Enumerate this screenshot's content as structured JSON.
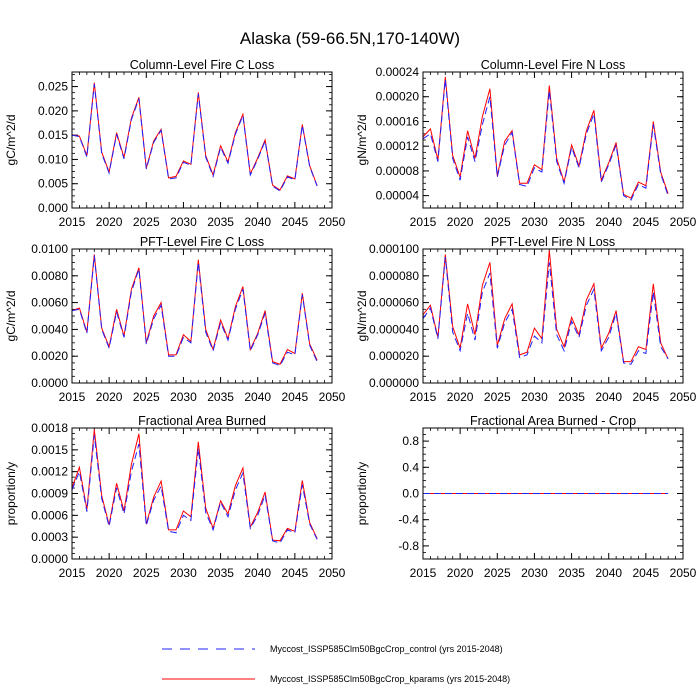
{
  "figure": {
    "title": "Alaska (59-66.5N,170-140W)",
    "legend": [
      {
        "label": "Myccost_ISSP585Clm50BgcCrop_control (yrs 2015-2048)",
        "color": "#2020ff",
        "style": "dashed"
      },
      {
        "label": "Myccost_ISSP585Clm50BgcCrop_kparams (yrs 2015-2048)",
        "color": "#ff0000",
        "style": "solid"
      }
    ]
  },
  "chart_data": [
    {
      "type": "line",
      "title": "Column-Level Fire C Loss",
      "ylabel": "gC/m^2/d",
      "xlim": [
        2015,
        2050
      ],
      "ylim": [
        0,
        0.028
      ],
      "xticks": [
        "2015",
        "2020",
        "2025",
        "2030",
        "2035",
        "2040",
        "2045",
        "2050"
      ],
      "yticks": [
        "0.000",
        "0.005",
        "0.010",
        "0.015",
        "0.020",
        "0.025"
      ],
      "x": [
        2015,
        2016,
        2017,
        2018,
        2019,
        2020,
        2021,
        2022,
        2023,
        2024,
        2025,
        2026,
        2027,
        2028,
        2029,
        2030,
        2031,
        2032,
        2033,
        2034,
        2035,
        2036,
        2037,
        2038,
        2039,
        2040,
        2041,
        2042,
        2043,
        2044,
        2045,
        2046,
        2047,
        2048
      ],
      "series": [
        {
          "name": "control",
          "values": [
            0.015,
            0.0147,
            0.0105,
            0.0255,
            0.0112,
            0.0072,
            0.0152,
            0.0101,
            0.0182,
            0.0225,
            0.008,
            0.0135,
            0.016,
            0.006,
            0.0062,
            0.0094,
            0.0088,
            0.0235,
            0.0105,
            0.0065,
            0.0125,
            0.0092,
            0.0152,
            0.019,
            0.0068,
            0.01,
            0.0138,
            0.0045,
            0.0035,
            0.0064,
            0.0058,
            0.017,
            0.0085,
            0.0045
          ]
        },
        {
          "name": "kparams",
          "values": [
            0.015,
            0.0148,
            0.0108,
            0.0258,
            0.0115,
            0.0074,
            0.0155,
            0.0104,
            0.0185,
            0.0228,
            0.0082,
            0.0138,
            0.0162,
            0.0062,
            0.0065,
            0.0097,
            0.009,
            0.0238,
            0.0108,
            0.0068,
            0.0128,
            0.0095,
            0.0155,
            0.0193,
            0.007,
            0.0103,
            0.014,
            0.0047,
            0.0037,
            0.0066,
            0.006,
            0.0172,
            0.0087,
            0.0046
          ]
        }
      ]
    },
    {
      "type": "line",
      "title": "Column-Level Fire N Loss",
      "ylabel": "gN/m^2/d",
      "xlim": [
        2015,
        2050
      ],
      "ylim": [
        2e-05,
        0.00024
      ],
      "xticks": [
        "2015",
        "2020",
        "2025",
        "2030",
        "2035",
        "2040",
        "2045",
        "2050"
      ],
      "yticks": [
        "0.00004",
        "0.00008",
        "0.00012",
        "0.00016",
        "0.00020",
        "0.00024"
      ],
      "x": [
        2015,
        2016,
        2017,
        2018,
        2019,
        2020,
        2021,
        2022,
        2023,
        2024,
        2025,
        2026,
        2027,
        2028,
        2029,
        2030,
        2031,
        2032,
        2033,
        2034,
        2035,
        2036,
        2037,
        2038,
        2039,
        2040,
        2041,
        2042,
        2043,
        2044,
        2045,
        2046,
        2047,
        2048
      ],
      "series": [
        {
          "name": "control",
          "values": [
            0.000132,
            0.00014,
            9.5e-05,
            0.000228,
            0.0001,
            6.5e-05,
            0.000135,
            9.5e-05,
            0.000155,
            0.0002,
            7e-05,
            0.000122,
            0.000142,
            5.8e-05,
            5.5e-05,
            8.5e-05,
            7.8e-05,
            0.00021,
            9.5e-05,
            6e-05,
            0.000118,
            8.5e-05,
            0.00014,
            0.000172,
            6.2e-05,
            9e-05,
            0.000122,
            4e-05,
            3.3e-05,
            5.8e-05,
            5.2e-05,
            0.000155,
            7.5e-05,
            4e-05
          ]
        },
        {
          "name": "kparams",
          "values": [
            0.000135,
            0.000148,
            9.8e-05,
            0.000232,
            0.000105,
            7e-05,
            0.000145,
            0.0001,
            0.000168,
            0.000213,
            7.2e-05,
            0.000128,
            0.000145,
            6e-05,
            6e-05,
            9e-05,
            8.2e-05,
            0.000218,
            0.0001,
            6.2e-05,
            0.000122,
            8.8e-05,
            0.000145,
            0.000178,
            6.5e-05,
            9.3e-05,
            0.000126,
            4.2e-05,
            3.6e-05,
            6.2e-05,
            5.6e-05,
            0.00016,
            7.8e-05,
            4.3e-05
          ]
        }
      ]
    },
    {
      "type": "line",
      "title": "PFT-Level Fire C Loss",
      "ylabel": "gC/m^2/d",
      "xlim": [
        2015,
        2050
      ],
      "ylim": [
        0,
        0.01
      ],
      "xticks": [
        "2015",
        "2020",
        "2025",
        "2030",
        "2035",
        "2040",
        "2045",
        "2050"
      ],
      "yticks": [
        "0.0000",
        "0.0020",
        "0.0040",
        "0.0060",
        "0.0080",
        "0.0100"
      ],
      "x": [
        2015,
        2016,
        2017,
        2018,
        2019,
        2020,
        2021,
        2022,
        2023,
        2024,
        2025,
        2026,
        2027,
        2028,
        2029,
        2030,
        2031,
        2032,
        2033,
        2034,
        2035,
        2036,
        2037,
        2038,
        2039,
        2040,
        2041,
        2042,
        2043,
        2044,
        2045,
        2046,
        2047,
        2048
      ],
      "series": [
        {
          "name": "control",
          "values": [
            0.0054,
            0.0055,
            0.0037,
            0.0095,
            0.004,
            0.0026,
            0.0053,
            0.0034,
            0.0068,
            0.0085,
            0.0029,
            0.0048,
            0.0058,
            0.002,
            0.002,
            0.0034,
            0.003,
            0.009,
            0.0038,
            0.0024,
            0.0045,
            0.0032,
            0.0055,
            0.007,
            0.0024,
            0.0036,
            0.0052,
            0.0015,
            0.0013,
            0.0023,
            0.0021,
            0.0066,
            0.0028,
            0.0016
          ]
        },
        {
          "name": "kparams",
          "values": [
            0.0054,
            0.0056,
            0.0038,
            0.0096,
            0.0041,
            0.0027,
            0.0055,
            0.0035,
            0.007,
            0.0086,
            0.003,
            0.005,
            0.006,
            0.0021,
            0.0021,
            0.0036,
            0.0031,
            0.0092,
            0.004,
            0.0025,
            0.0047,
            0.0033,
            0.0057,
            0.0072,
            0.0025,
            0.0037,
            0.0054,
            0.0016,
            0.0014,
            0.0025,
            0.0022,
            0.0067,
            0.0029,
            0.0017
          ]
        }
      ]
    },
    {
      "type": "line",
      "title": "PFT-Level Fire N Loss",
      "ylabel": "gN/m^2/d",
      "xlim": [
        2015,
        2050
      ],
      "ylim": [
        0,
        0.0001
      ],
      "xticks": [
        "2015",
        "2020",
        "2025",
        "2030",
        "2035",
        "2040",
        "2045",
        "2050"
      ],
      "yticks": [
        "0.000000",
        "0.000020",
        "0.000040",
        "0.000060",
        "0.000080",
        "0.000100"
      ],
      "x": [
        2015,
        2016,
        2017,
        2018,
        2019,
        2020,
        2021,
        2022,
        2023,
        2024,
        2025,
        2026,
        2027,
        2028,
        2029,
        2030,
        2031,
        2032,
        2033,
        2034,
        2035,
        2036,
        2037,
        2038,
        2039,
        2040,
        2041,
        2042,
        2043,
        2044,
        2045,
        2046,
        2047,
        2048
      ],
      "series": [
        {
          "name": "control",
          "values": [
            4.8e-05,
            5.6e-05,
            3.3e-05,
            9.4e-05,
            3.8e-05,
            2.4e-05,
            5.2e-05,
            3.2e-05,
            6.8e-05,
            8.2e-05,
            2.6e-05,
            4.5e-05,
            5.5e-05,
            1.9e-05,
            2.1e-05,
            3.5e-05,
            3e-05,
            9e-05,
            3.6e-05,
            2.4e-05,
            4.6e-05,
            3.4e-05,
            5.8e-05,
            7e-05,
            2.4e-05,
            3.4e-05,
            5.2e-05,
            1.5e-05,
            1.4e-05,
            2.4e-05,
            2.2e-05,
            6.8e-05,
            2.7e-05,
            1.8e-05
          ]
        },
        {
          "name": "kparams",
          "values": [
            5.1e-05,
            5.8e-05,
            3.4e-05,
            9.6e-05,
            4.2e-05,
            2.6e-05,
            5.9e-05,
            3.6e-05,
            7.3e-05,
            9e-05,
            2.8e-05,
            4.8e-05,
            5.9e-05,
            2.1e-05,
            2.3e-05,
            4.1e-05,
            3.3e-05,
            9.9e-05,
            4e-05,
            2.7e-05,
            4.9e-05,
            3.6e-05,
            6.2e-05,
            7.4e-05,
            2.6e-05,
            3.7e-05,
            5.4e-05,
            1.6e-05,
            1.6e-05,
            2.7e-05,
            2.5e-05,
            7.4e-05,
            3e-05,
            1.8e-05
          ]
        }
      ]
    },
    {
      "type": "line",
      "title": "Fractional Area Burned",
      "ylabel": "proportion/y",
      "xlim": [
        2015,
        2050
      ],
      "ylim": [
        0,
        0.0018
      ],
      "xticks": [
        "2015",
        "2020",
        "2025",
        "2030",
        "2035",
        "2040",
        "2045",
        "2050"
      ],
      "yticks": [
        "0.0000",
        "0.0003",
        "0.0006",
        "0.0009",
        "0.0012",
        "0.0015",
        "0.0018"
      ],
      "x": [
        2015,
        2016,
        2017,
        2018,
        2019,
        2020,
        2021,
        2022,
        2023,
        2024,
        2025,
        2026,
        2027,
        2028,
        2029,
        2030,
        2031,
        2032,
        2033,
        2034,
        2035,
        2036,
        2037,
        2038,
        2039,
        2040,
        2041,
        2042,
        2043,
        2044,
        2045,
        2046,
        2047,
        2048
      ],
      "series": [
        {
          "name": "control",
          "values": [
            0.00095,
            0.0012,
            0.00065,
            0.0017,
            0.00083,
            0.00045,
            0.00098,
            0.00062,
            0.0012,
            0.00158,
            0.00046,
            0.00081,
            0.001,
            0.00038,
            0.00036,
            0.0006,
            0.00053,
            0.00152,
            0.00064,
            0.0004,
            0.00078,
            0.00058,
            0.00095,
            0.00118,
            0.00042,
            0.0006,
            0.00088,
            0.00025,
            0.00022,
            0.0004,
            0.00036,
            0.00102,
            0.00048,
            0.00027
          ]
        },
        {
          "name": "kparams",
          "values": [
            0.00098,
            0.00126,
            0.00068,
            0.00178,
            0.00087,
            0.00047,
            0.00104,
            0.00066,
            0.0013,
            0.00172,
            0.00048,
            0.00085,
            0.00107,
            0.0004,
            0.0004,
            0.00066,
            0.00058,
            0.00161,
            0.0007,
            0.00042,
            0.0008,
            0.00062,
            0.00101,
            0.00125,
            0.00044,
            0.00064,
            0.00092,
            0.00026,
            0.00025,
            0.00042,
            0.00038,
            0.00108,
            0.0005,
            0.00028
          ]
        }
      ]
    },
    {
      "type": "line",
      "title": "Fractional Area Burned - Crop",
      "ylabel": "proportion/y",
      "xlim": [
        2015,
        2050
      ],
      "ylim": [
        -1,
        1
      ],
      "xticks": [
        "2015",
        "2020",
        "2025",
        "2030",
        "2035",
        "2040",
        "2045",
        "2050"
      ],
      "yticks": [
        "-0.8",
        "-0.4",
        "0.0",
        "0.4",
        "0.8"
      ],
      "x": [
        2015,
        2016,
        2017,
        2018,
        2019,
        2020,
        2021,
        2022,
        2023,
        2024,
        2025,
        2026,
        2027,
        2028,
        2029,
        2030,
        2031,
        2032,
        2033,
        2034,
        2035,
        2036,
        2037,
        2038,
        2039,
        2040,
        2041,
        2042,
        2043,
        2044,
        2045,
        2046,
        2047,
        2048
      ],
      "series": [
        {
          "name": "control",
          "values": [
            0,
            0,
            0,
            0,
            0,
            0,
            0,
            0,
            0,
            0,
            0,
            0,
            0,
            0,
            0,
            0,
            0,
            0,
            0,
            0,
            0,
            0,
            0,
            0,
            0,
            0,
            0,
            0,
            0,
            0,
            0,
            0,
            0,
            0
          ]
        },
        {
          "name": "kparams",
          "values": [
            0,
            0,
            0,
            0,
            0,
            0,
            0,
            0,
            0,
            0,
            0,
            0,
            0,
            0,
            0,
            0,
            0,
            0,
            0,
            0,
            0,
            0,
            0,
            0,
            0,
            0,
            0,
            0,
            0,
            0,
            0,
            0,
            0,
            0
          ]
        }
      ]
    }
  ]
}
